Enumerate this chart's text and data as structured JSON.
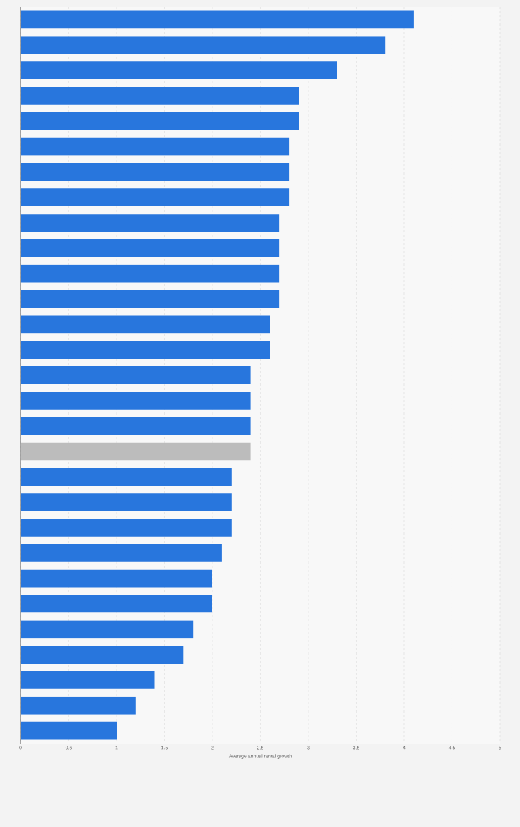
{
  "chart_data": {
    "type": "bar",
    "orientation": "horizontal",
    "xlabel": "Average annual rental growth",
    "categories": [
      null,
      null,
      null,
      null,
      null,
      null,
      null,
      null,
      null,
      null,
      null,
      null,
      null,
      null,
      null,
      null,
      null,
      null,
      null,
      null,
      null,
      null,
      null,
      null,
      null,
      null,
      null,
      null,
      null
    ],
    "values": [
      4.1,
      3.8,
      3.3,
      2.9,
      2.9,
      2.8,
      2.8,
      2.8,
      2.7,
      2.7,
      2.7,
      2.7,
      2.6,
      2.6,
      2.4,
      2.4,
      2.4,
      2.4,
      2.2,
      2.2,
      2.2,
      2.1,
      2.0,
      2.0,
      1.8,
      1.7,
      1.4,
      1.2,
      1.0
    ],
    "colors": [
      "#2876dd",
      "#2876dd",
      "#2876dd",
      "#2876dd",
      "#2876dd",
      "#2876dd",
      "#2876dd",
      "#2876dd",
      "#2876dd",
      "#2876dd",
      "#2876dd",
      "#2876dd",
      "#2876dd",
      "#2876dd",
      "#2876dd",
      "#2876dd",
      "#2876dd",
      "#bcbcbc",
      "#2876dd",
      "#2876dd",
      "#2876dd",
      "#2876dd",
      "#2876dd",
      "#2876dd",
      "#2876dd",
      "#2876dd",
      "#2876dd",
      "#2876dd",
      "#2876dd"
    ],
    "xlim": [
      0,
      5
    ],
    "xticks": [
      0,
      0.5,
      1,
      1.5,
      2,
      2.5,
      3,
      3.5,
      4,
      4.5,
      5
    ],
    "grid": "x",
    "tick_labels": "x"
  }
}
